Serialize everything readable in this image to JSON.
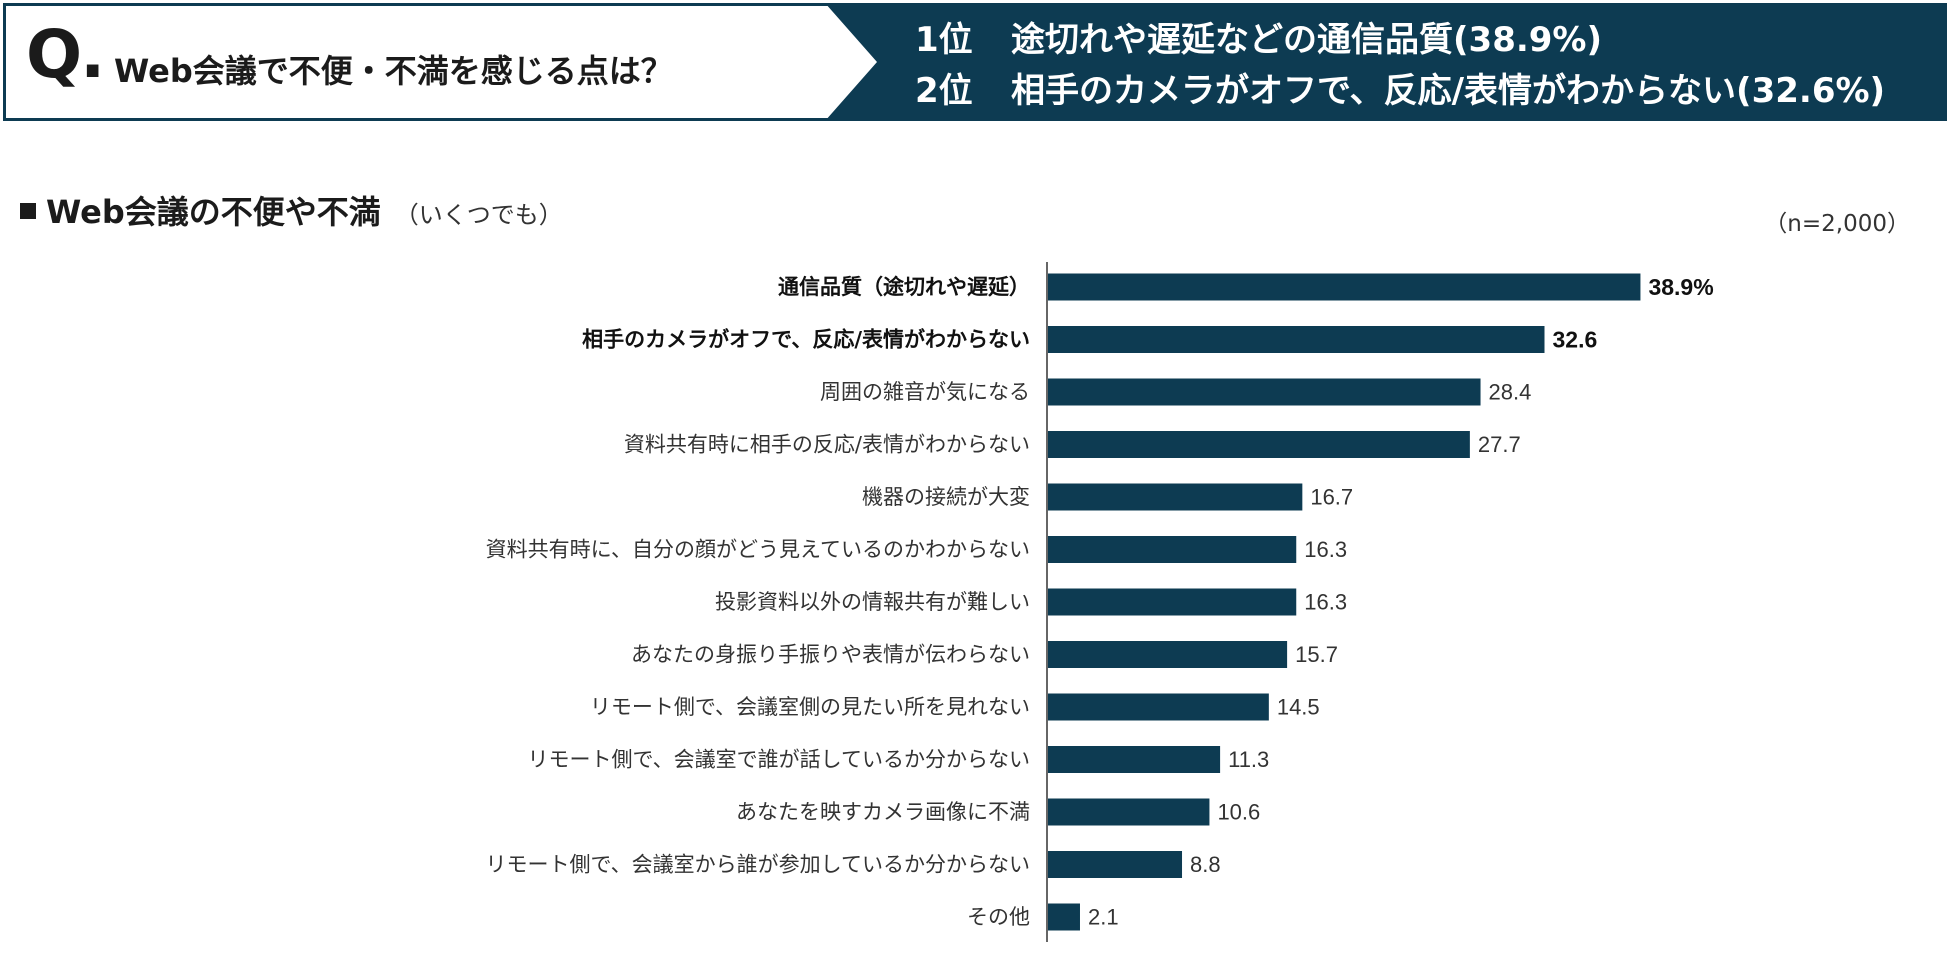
{
  "header": {
    "question_mark": "Q.",
    "question": "Web会議で不便・不満を感じる点は？",
    "rankings": [
      {
        "rank": "1位",
        "text": "途切れや遅延などの通信品質(38.9%)"
      },
      {
        "rank": "2位",
        "text": "相手のカメラがオフで、反応/表情がわからない(32.6%)"
      }
    ]
  },
  "chart_title": {
    "main": "Web会議の不便や不満",
    "sub": "（いくつでも）"
  },
  "sample_size": "（n=2,000）",
  "colors": {
    "bar": "#0d3b52",
    "banner": "#0d3b52",
    "text": "#1b1b1b"
  },
  "chart_data": {
    "type": "bar",
    "orientation": "horizontal",
    "categories": [
      "通信品質（途切れや遅延）",
      "相手のカメラがオフで、反応/表情がわからない",
      "周囲の雑音が気になる",
      "資料共有時に相手の反応/表情がわからない",
      "機器の接続が大変",
      "資料共有時に、自分の顔がどう見えているのかわからない",
      "投影資料以外の情報共有が難しい",
      "あなたの身振り手振りや表情が伝わらない",
      "リモート側で、会議室側の見たい所を見れない",
      "リモート側で、会議室で誰が話しているか分からない",
      "あなたを映すカメラ画像に不満",
      "リモート側で、会議室から誰が参加しているか分からない",
      "その他"
    ],
    "values": [
      38.9,
      32.6,
      28.4,
      27.7,
      16.7,
      16.3,
      16.3,
      15.7,
      14.5,
      11.3,
      10.6,
      8.8,
      2.1
    ],
    "value_labels": [
      "38.9%",
      "32.6",
      "28.4",
      "27.7",
      "16.7",
      "16.3",
      "16.3",
      "15.7",
      "14.5",
      "11.3",
      "10.6",
      "8.8",
      "2.1"
    ],
    "emphasized": [
      true,
      true,
      false,
      false,
      false,
      false,
      false,
      false,
      false,
      false,
      false,
      false,
      false
    ],
    "unit": "%",
    "xlim": [
      0,
      40
    ],
    "grid": false
  }
}
